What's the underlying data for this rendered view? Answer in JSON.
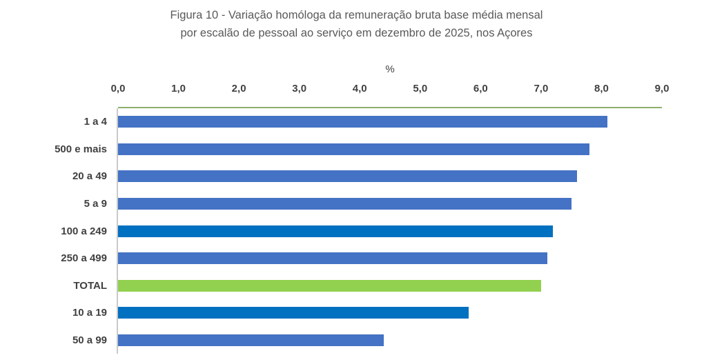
{
  "title": {
    "line1": "Figura 10 - Variação homóloga da remuneração bruta base média mensal",
    "line2": "por escalão de pessoal ao serviço em dezembro de 2025, nos Açores"
  },
  "chart_data": {
    "type": "bar",
    "orientation": "horizontal",
    "title": "Figura 10 - Variação homóloga da remuneração bruta base média mensal por escalão de pessoal ao serviço em dezembro de 2025, nos Açores",
    "xlabel": "%",
    "ylabel": "",
    "xlim": [
      0,
      9
    ],
    "x_ticks": [
      "0,0",
      "1,0",
      "2,0",
      "3,0",
      "4,0",
      "5,0",
      "6,0",
      "7,0",
      "8,0",
      "9,0"
    ],
    "grid": false,
    "legend": false,
    "categories": [
      "1 a 4",
      "500 e mais",
      "20 a 49",
      "5 a 9",
      "100 a 249",
      "250 a 499",
      "TOTAL",
      "10 a 19",
      "50 a 99"
    ],
    "values": [
      8.1,
      7.8,
      7.6,
      7.5,
      7.2,
      7.1,
      7.0,
      5.8,
      4.4
    ],
    "bar_colors": [
      "#4472C4",
      "#4472C4",
      "#4472C4",
      "#4472C4",
      "#0070C0",
      "#4472C4",
      "#92D050",
      "#0070C0",
      "#4472C4"
    ],
    "colors": {
      "bar_default": "#4472C4",
      "bar_highlight": "#0070C0",
      "bar_total": "#92D050",
      "axis_line_green": "#8CAE6B",
      "axis_line_gray": "#C9C9C9",
      "label_color": "#404040",
      "title_color": "#595959"
    }
  }
}
